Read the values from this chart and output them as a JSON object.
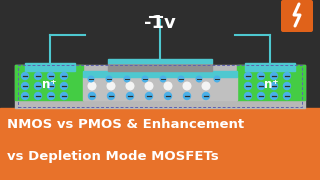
{
  "bg_color": "#2e2e2e",
  "orange_bar_color": "#e8722a",
  "title_line1": "NMOS vs PMOS & Enhancement",
  "title_line2": "vs Depletion Mode MOSFETs",
  "title_color": "#ffffff",
  "title_fontsize": 9.5,
  "voltage_text": "-1v",
  "voltage_color": "#ffffff",
  "substrate_color": "#b8b8b8",
  "oxide_color": "#4ec8d0",
  "gate_color": "#4ec8d0",
  "nplus_color": "#44cc44",
  "dot_blue": "#4ab0e8",
  "dot_white": "#f4f4f4",
  "minus_color": "#2e2e2e",
  "icon_bg": "#e0621a",
  "icon_color": "#ffffff",
  "wire_color": "#4ec8d0",
  "dashed_color": "#6060b0"
}
